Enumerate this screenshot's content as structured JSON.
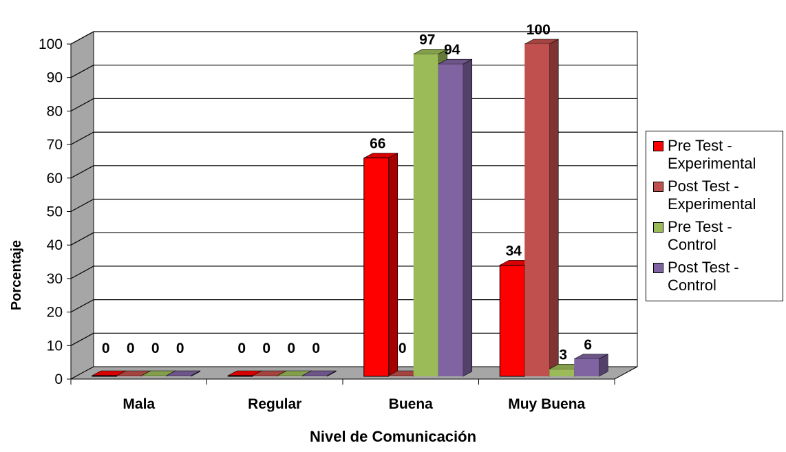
{
  "chart_data": {
    "type": "bar",
    "categories": [
      "Mala",
      "Regular",
      "Buena",
      "Muy Buena"
    ],
    "series": [
      {
        "name": "Pre Test - Experimental",
        "color": "#ff0000",
        "values": [
          0,
          0,
          66,
          34
        ]
      },
      {
        "name": "Post Test - Experimental",
        "color": "#c0504d",
        "values": [
          0,
          0,
          0,
          100
        ]
      },
      {
        "name": "Pre Test - Control",
        "color": "#9bbb59",
        "values": [
          0,
          0,
          97,
          3
        ]
      },
      {
        "name": "Post Test - Control",
        "color": "#8064a2",
        "values": [
          0,
          0,
          94,
          6
        ]
      }
    ],
    "data_labels": [
      [
        "0",
        "0",
        "66",
        "34"
      ],
      [
        "0",
        "0",
        "0",
        "100"
      ],
      [
        "0",
        "0",
        "97",
        "3"
      ],
      [
        "0",
        "0",
        "94",
        "6"
      ]
    ],
    "yticks": [
      "0",
      "10",
      "20",
      "30",
      "40",
      "50",
      "60",
      "70",
      "80",
      "90",
      "100"
    ],
    "xlabel": "Nivel de  Comunicación",
    "ylabel": "Porcentaje",
    "ylim": [
      0,
      100
    ],
    "grid": true,
    "legend": "right",
    "three_d": true
  },
  "legend": {
    "items": [
      {
        "label": "Pre Test -\nExperimental",
        "color": "#ff0000"
      },
      {
        "label": "Post Test -\nExperimental",
        "color": "#c0504d"
      },
      {
        "label": "Pre Test -\nControl",
        "color": "#9bbb59"
      },
      {
        "label": "Post Test -\nControl",
        "color": "#8064a2"
      }
    ]
  }
}
